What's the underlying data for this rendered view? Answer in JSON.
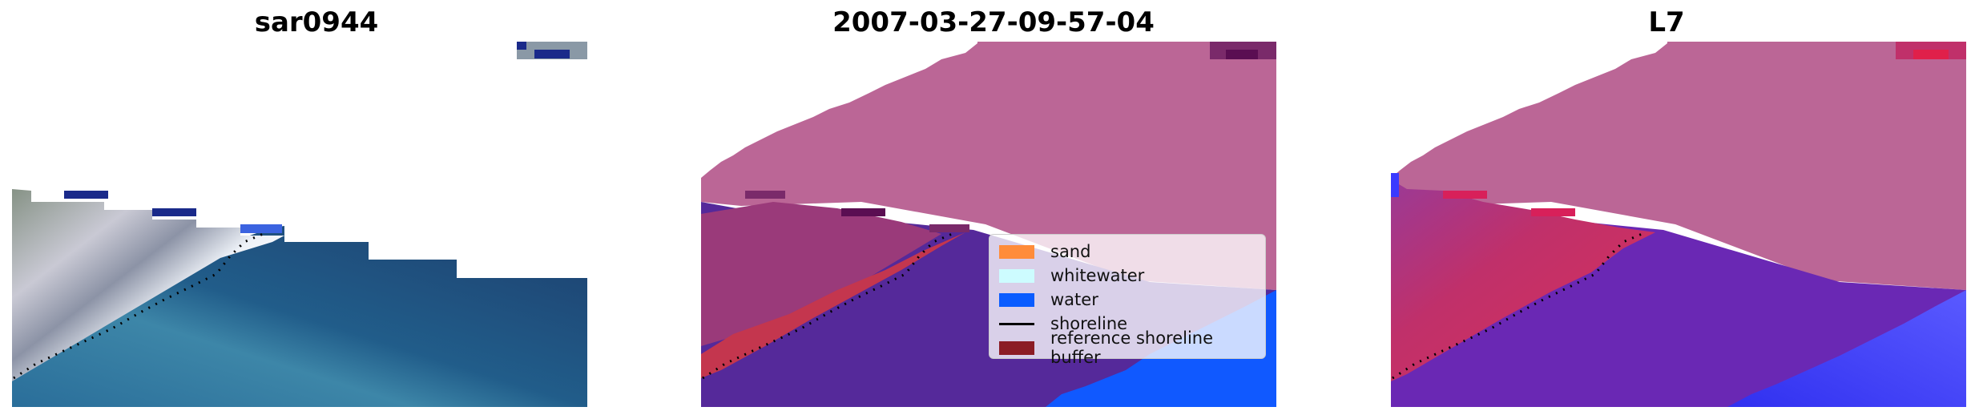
{
  "panels": [
    {
      "title": "sar0944"
    },
    {
      "title": "2007-03-27-09-57-04"
    },
    {
      "title": "L7"
    }
  ],
  "legend": {
    "items": [
      {
        "label": "sand",
        "color": "#ff8c3a"
      },
      {
        "label": "whitewater",
        "color": "#cdfcff"
      },
      {
        "label": "water",
        "color": "#0a5cff"
      },
      {
        "label": "shoreline",
        "color": "#000000"
      },
      {
        "label": "reference shoreline buffer",
        "color": "#8b1c25"
      }
    ]
  }
}
